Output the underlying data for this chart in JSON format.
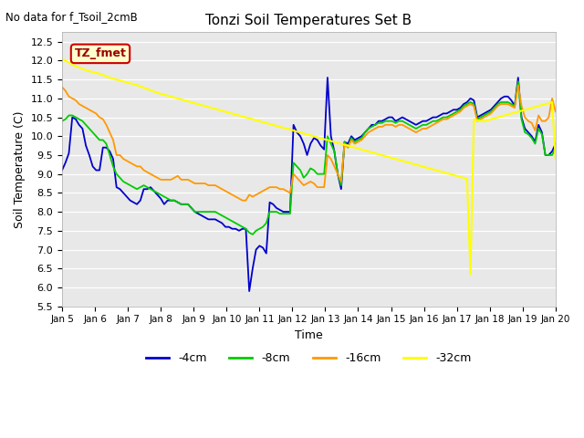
{
  "title": "Tonzi Soil Temperatures Set B",
  "no_data_text": "No data for f_Tsoil_2cmB",
  "tz_fmet_label": "TZ_fmet",
  "xlabel": "Time",
  "ylabel": "Soil Temperature (C)",
  "ylim": [
    5.5,
    12.75
  ],
  "xlim": [
    0,
    15
  ],
  "xtick_labels": [
    "Jan 5",
    "Jan 6",
    "Jan 7",
    "Jan 8",
    "Jan 9",
    "Jan 10",
    "Jan 11",
    "Jan 12",
    "Jan 13",
    "Jan 14",
    "Jan 15",
    "Jan 16",
    "Jan 17",
    "Jan 18",
    "Jan 19",
    "Jan 20"
  ],
  "ytick_vals": [
    5.5,
    6.0,
    6.5,
    7.0,
    7.5,
    8.0,
    8.5,
    9.0,
    9.5,
    10.0,
    10.5,
    11.0,
    11.5,
    12.0,
    12.5
  ],
  "colors": {
    "4cm": "#0000cc",
    "8cm": "#00cc00",
    "16cm": "#ff9900",
    "32cm": "#ffff00",
    "background": "#e8e8e8",
    "tz_box_bg": "#ffffcc",
    "tz_box_border": "#cc0000",
    "tz_text": "#990000"
  },
  "series_4cm_y": [
    9.1,
    9.3,
    9.55,
    10.5,
    10.45,
    10.3,
    10.2,
    9.75,
    9.5,
    9.2,
    9.1,
    9.1,
    9.7,
    9.7,
    9.6,
    9.4,
    8.65,
    8.6,
    8.5,
    8.4,
    8.3,
    8.25,
    8.2,
    8.3,
    8.6,
    8.6,
    8.65,
    8.55,
    8.45,
    8.35,
    8.2,
    8.3,
    8.3,
    8.3,
    8.25,
    8.2,
    8.2,
    8.2,
    8.1,
    8.0,
    7.95,
    7.9,
    7.85,
    7.8,
    7.8,
    7.8,
    7.75,
    7.7,
    7.6,
    7.6,
    7.55,
    7.55,
    7.5,
    7.55,
    7.55,
    5.9,
    6.5,
    7.0,
    7.1,
    7.05,
    6.9,
    8.25,
    8.2,
    8.1,
    8.05,
    8.0,
    8.0,
    8.0,
    10.3,
    10.1,
    10.0,
    9.8,
    9.5,
    9.8,
    9.95,
    9.9,
    9.75,
    9.65,
    11.55,
    10.0,
    9.6,
    9.0,
    8.6,
    9.85,
    9.8,
    10.0,
    9.9,
    9.95,
    10.0,
    10.1,
    10.2,
    10.3,
    10.3,
    10.4,
    10.4,
    10.45,
    10.5,
    10.5,
    10.4,
    10.45,
    10.5,
    10.45,
    10.4,
    10.35,
    10.3,
    10.35,
    10.4,
    10.4,
    10.45,
    10.5,
    10.5,
    10.55,
    10.6,
    10.6,
    10.65,
    10.7,
    10.7,
    10.75,
    10.85,
    10.9,
    11.0,
    10.95,
    10.5,
    10.55,
    10.6,
    10.65,
    10.7,
    10.8,
    10.9,
    11.0,
    11.05,
    11.05,
    10.95,
    10.8,
    11.55,
    10.5,
    10.2,
    10.1,
    10.0,
    9.85,
    10.3,
    10.1,
    9.5,
    9.5,
    9.6,
    9.8
  ],
  "series_8cm_y": [
    10.4,
    10.45,
    10.55,
    10.55,
    10.5,
    10.45,
    10.4,
    10.3,
    10.2,
    10.1,
    10.0,
    9.9,
    9.9,
    9.8,
    9.5,
    9.2,
    9.0,
    8.9,
    8.8,
    8.75,
    8.7,
    8.65,
    8.6,
    8.65,
    8.7,
    8.65,
    8.6,
    8.55,
    8.5,
    8.45,
    8.4,
    8.35,
    8.3,
    8.3,
    8.25,
    8.2,
    8.2,
    8.2,
    8.1,
    8.0,
    8.0,
    8.0,
    8.0,
    8.0,
    8.0,
    8.0,
    7.95,
    7.9,
    7.85,
    7.8,
    7.75,
    7.7,
    7.65,
    7.6,
    7.55,
    7.45,
    7.4,
    7.5,
    7.55,
    7.6,
    7.7,
    8.0,
    8.0,
    8.0,
    7.95,
    7.95,
    7.95,
    7.95,
    9.3,
    9.2,
    9.1,
    8.9,
    9.0,
    9.15,
    9.1,
    9.0,
    9.0,
    9.0,
    10.0,
    9.8,
    9.6,
    9.0,
    8.7,
    9.85,
    9.7,
    9.95,
    9.85,
    9.9,
    9.95,
    10.1,
    10.2,
    10.25,
    10.3,
    10.35,
    10.35,
    10.4,
    10.4,
    10.4,
    10.35,
    10.4,
    10.4,
    10.35,
    10.3,
    10.25,
    10.2,
    10.25,
    10.3,
    10.3,
    10.35,
    10.4,
    10.4,
    10.45,
    10.5,
    10.5,
    10.55,
    10.6,
    10.65,
    10.7,
    10.8,
    10.85,
    10.9,
    10.85,
    10.45,
    10.5,
    10.55,
    10.6,
    10.65,
    10.75,
    10.85,
    10.9,
    10.9,
    10.9,
    10.85,
    10.8,
    11.45,
    10.45,
    10.1,
    10.05,
    9.95,
    9.8,
    10.2,
    10.05,
    9.5,
    9.5,
    9.5,
    9.7
  ],
  "series_16cm_y": [
    11.3,
    11.2,
    11.05,
    11.0,
    10.95,
    10.85,
    10.8,
    10.75,
    10.7,
    10.65,
    10.6,
    10.5,
    10.45,
    10.3,
    10.1,
    9.9,
    9.5,
    9.5,
    9.4,
    9.35,
    9.3,
    9.25,
    9.2,
    9.2,
    9.1,
    9.05,
    9.0,
    8.95,
    8.9,
    8.85,
    8.85,
    8.85,
    8.85,
    8.9,
    8.95,
    8.85,
    8.85,
    8.85,
    8.8,
    8.75,
    8.75,
    8.75,
    8.75,
    8.7,
    8.7,
    8.7,
    8.65,
    8.6,
    8.55,
    8.5,
    8.45,
    8.4,
    8.35,
    8.3,
    8.3,
    8.45,
    8.4,
    8.45,
    8.5,
    8.55,
    8.6,
    8.65,
    8.65,
    8.65,
    8.6,
    8.6,
    8.55,
    8.5,
    9.0,
    8.9,
    8.8,
    8.7,
    8.75,
    8.8,
    8.75,
    8.65,
    8.65,
    8.65,
    9.5,
    9.4,
    9.2,
    9.0,
    8.8,
    9.8,
    9.7,
    9.9,
    9.8,
    9.85,
    9.9,
    10.0,
    10.1,
    10.15,
    10.2,
    10.25,
    10.25,
    10.3,
    10.3,
    10.3,
    10.25,
    10.3,
    10.3,
    10.25,
    10.2,
    10.15,
    10.1,
    10.15,
    10.2,
    10.2,
    10.25,
    10.3,
    10.35,
    10.4,
    10.45,
    10.45,
    10.5,
    10.55,
    10.6,
    10.65,
    10.75,
    10.8,
    10.85,
    10.8,
    10.4,
    10.45,
    10.5,
    10.55,
    10.6,
    10.7,
    10.8,
    10.85,
    10.85,
    10.85,
    10.8,
    10.75,
    11.35,
    10.8,
    10.5,
    10.4,
    10.35,
    10.15,
    10.55,
    10.4,
    10.4,
    10.5,
    11.0,
    10.65
  ],
  "series_32cm_y": [
    12.05,
    12.0,
    11.95,
    11.9,
    11.85,
    11.82,
    11.78,
    11.75,
    11.72,
    11.7,
    11.68,
    11.65,
    11.62,
    11.58,
    11.55,
    11.52,
    11.5,
    11.47,
    11.45,
    11.42,
    11.4,
    11.38,
    11.35,
    11.32,
    11.28,
    11.25,
    11.22,
    11.18,
    11.15,
    11.12,
    11.1,
    11.07,
    11.05,
    11.02,
    11.0,
    10.97,
    10.95,
    10.92,
    10.9,
    10.87,
    10.85,
    10.82,
    10.8,
    10.77,
    10.75,
    10.72,
    10.7,
    10.67,
    10.65,
    10.62,
    10.6,
    10.57,
    10.55,
    10.52,
    10.5,
    10.47,
    10.45,
    10.42,
    10.4,
    10.37,
    10.35,
    10.32,
    10.3,
    10.27,
    10.25,
    10.22,
    10.2,
    10.18,
    10.15,
    10.12,
    10.1,
    10.07,
    10.05,
    10.02,
    10.0,
    9.97,
    9.95,
    9.92,
    9.9,
    9.87,
    9.85,
    9.82,
    9.8,
    9.77,
    9.75,
    9.72,
    9.7,
    9.67,
    9.65,
    9.62,
    9.6,
    9.57,
    9.55,
    9.52,
    9.5,
    9.47,
    9.45,
    9.42,
    9.4,
    9.37,
    9.35,
    9.32,
    9.3,
    9.27,
    9.25,
    9.22,
    9.2,
    9.17,
    9.15,
    9.12,
    9.1,
    9.07,
    9.05,
    9.02,
    9.0,
    8.97,
    8.95,
    8.92,
    8.9,
    8.87,
    6.35,
    10.45,
    10.42,
    10.4,
    10.4,
    10.42,
    10.45,
    10.47,
    10.5,
    10.52,
    10.55,
    10.57,
    10.6,
    10.62,
    10.65,
    10.67,
    10.7,
    10.72,
    10.75,
    10.77,
    10.8,
    10.82,
    10.85,
    10.87,
    10.9,
    9.4
  ]
}
